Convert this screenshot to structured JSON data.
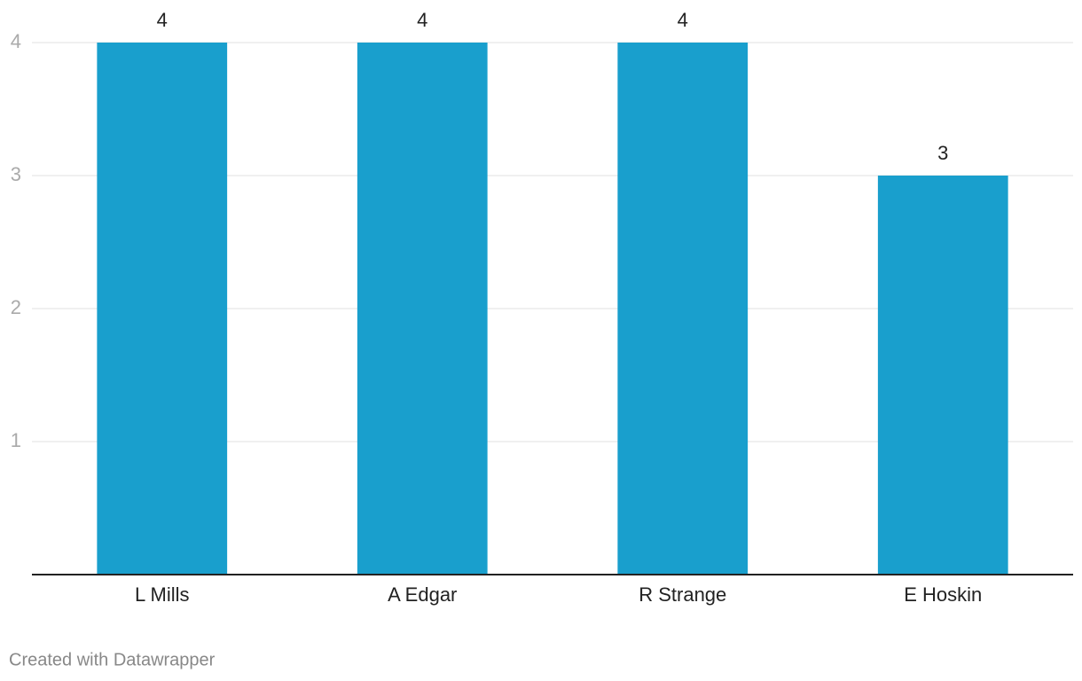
{
  "chart_data": {
    "type": "bar",
    "categories": [
      "L Mills",
      "A Edgar",
      "R Strange",
      "E Hoskin"
    ],
    "values": [
      4,
      4,
      4,
      3
    ],
    "color": "#199fcd",
    "ylim": [
      0,
      4
    ],
    "yticks": [
      1,
      2,
      3,
      4
    ],
    "grid": true,
    "credit": "Created with Datawrapper"
  }
}
